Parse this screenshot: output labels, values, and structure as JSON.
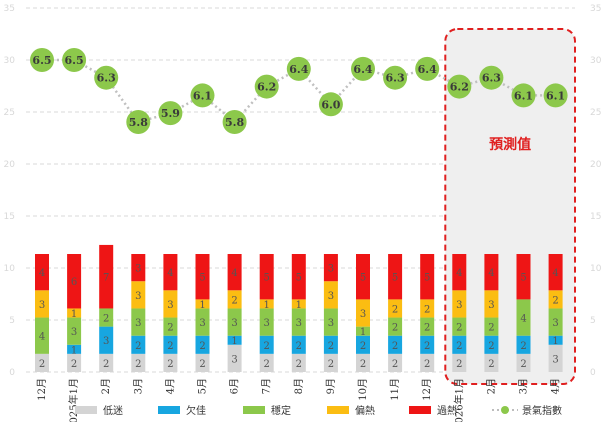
{
  "chart_data": {
    "type": "bar+line",
    "title": "",
    "categories": [
      "12月",
      "2025年1月",
      "2月",
      "3月",
      "4月",
      "5月",
      "6月",
      "7月",
      "8月",
      "9月",
      "10月",
      "11月",
      "12月",
      "2026年1月",
      "2月",
      "3月",
      "4月"
    ],
    "series": [
      {
        "name": "低迷",
        "key": "low",
        "color": "#d4d4d4",
        "values": [
          2,
          2,
          2,
          2,
          2,
          2,
          3,
          2,
          2,
          2,
          2,
          2,
          2,
          2,
          2,
          2,
          3
        ]
      },
      {
        "name": "欠佳",
        "key": "weak",
        "color": "#17a6e0",
        "values": [
          0,
          1,
          3,
          2,
          2,
          2,
          1,
          2,
          2,
          2,
          2,
          2,
          2,
          2,
          2,
          2,
          1
        ]
      },
      {
        "name": "穩定",
        "key": "stable",
        "color": "#8cc84b",
        "values": [
          4,
          3,
          2,
          3,
          2,
          3,
          3,
          3,
          3,
          3,
          1,
          2,
          2,
          2,
          2,
          4,
          3
        ]
      },
      {
        "name": "偏熱",
        "key": "warm",
        "color": "#fbbd12",
        "values": [
          3,
          1,
          0,
          3,
          3,
          1,
          2,
          1,
          1,
          3,
          3,
          2,
          2,
          3,
          3,
          0,
          2
        ]
      },
      {
        "name": "過熱",
        "key": "hot",
        "color": "#ee1515",
        "values": [
          4,
          6,
          7,
          3,
          4,
          5,
          4,
          5,
          5,
          3,
          5,
          5,
          5,
          4,
          4,
          5,
          4
        ]
      }
    ],
    "index_series": {
      "name": "景氣指數",
      "color": "#8cc84b",
      "values": [
        6.5,
        6.5,
        6.3,
        5.8,
        5.9,
        6.1,
        5.8,
        6.2,
        6.4,
        6.0,
        6.4,
        6.3,
        6.4,
        6.2,
        6.3,
        6.1,
        6.1
      ]
    },
    "y_ticks": [
      "0",
      "5",
      "10",
      "15",
      "20",
      "25",
      "30",
      "35"
    ],
    "ylim": [
      0,
      35
    ],
    "index_range": [
      5.0,
      7.0
    ],
    "forecast_start_index": 13,
    "forecast_label": "預測值",
    "grid": true,
    "legend": "bottom"
  },
  "legend": {
    "low": "低迷",
    "weak": "欠佳",
    "stable": "穩定",
    "warm": "偏熱",
    "hot": "過熱",
    "index": "景氣指數"
  },
  "colors": {
    "forecast_border": "#e02020",
    "forecast_fill": "#efefef",
    "grid": "#d9d9d9"
  }
}
